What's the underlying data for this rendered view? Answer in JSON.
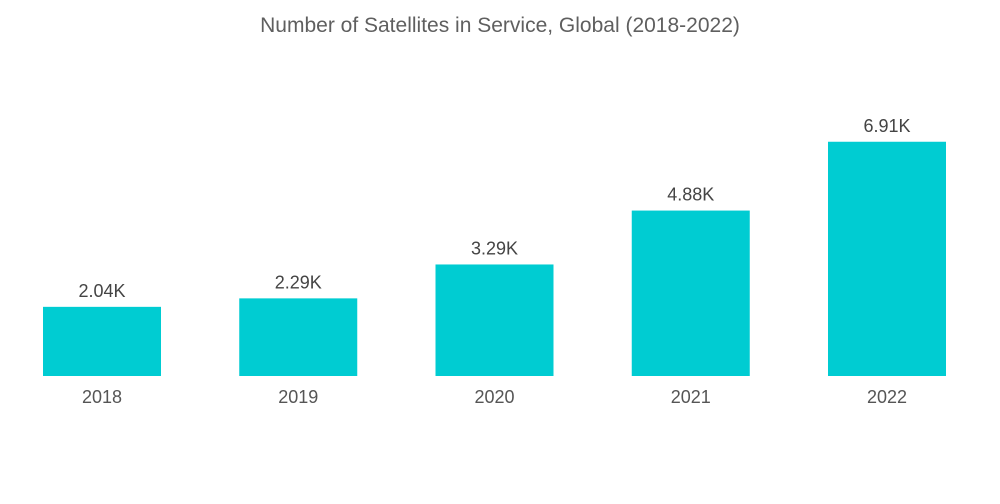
{
  "chart_data": {
    "type": "bar",
    "title": "Number of Satellites in Service, Global (2018-2022)",
    "xlabel": "",
    "ylabel": "",
    "categories": [
      "2018",
      "2019",
      "2020",
      "2021",
      "2022"
    ],
    "values": [
      2.04,
      2.29,
      3.29,
      4.88,
      6.91
    ],
    "value_labels": [
      "2.04K",
      "2.29K",
      "3.29K",
      "4.88K",
      "6.91K"
    ],
    "unit": "K",
    "ylim": [
      0,
      7.5
    ],
    "grid": false,
    "legend": "none",
    "bar_color": "#00CCD2"
  }
}
